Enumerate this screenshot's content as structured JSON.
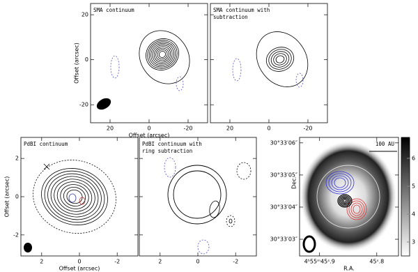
{
  "panels": [
    {
      "title_lines": [
        "SMA continuum"
      ],
      "xlabel": "Offset (arcsec)",
      "ylabel": "Offset (arcsec)",
      "xlim": [
        30,
        -30
      ],
      "ylim": [
        -28,
        25
      ],
      "xticks": [
        20,
        0,
        -20
      ],
      "yticks": [
        20,
        0,
        -20
      ],
      "ytick_labels": true
    },
    {
      "title_lines": [
        "SMA continuum with",
        "subtraction"
      ],
      "xlim": [
        30,
        -30
      ],
      "ylim": [
        -28,
        25
      ],
      "xticks": [
        20,
        0,
        -20
      ],
      "yticks": [
        20,
        0,
        -20
      ],
      "ytick_labels": false
    },
    {
      "title_lines": [
        "PdBI continuum"
      ],
      "xlabel": "Offset (arcsec)",
      "ylabel": "Offset (arcsec)",
      "xlim": [
        3.1,
        -3.1
      ],
      "ylim": [
        -3.1,
        3.1
      ],
      "xticks": [
        2,
        0,
        -2
      ],
      "yticks": [
        2,
        0,
        -2
      ],
      "ytick_labels": true
    },
    {
      "title_lines": [
        "PdBI continuum with",
        "ring subtraction"
      ],
      "xlim": [
        3.1,
        -3.1
      ],
      "ylim": [
        -3.1,
        3.1
      ],
      "xticks": [
        2,
        0,
        -2
      ],
      "yticks": [
        2,
        0,
        -2
      ],
      "ytick_labels": false
    },
    {
      "title_lines": [
        "100 AU"
      ],
      "xlabel": "R.A.",
      "ylabel": "Dec.",
      "xlim": [
        45.935,
        45.762
      ],
      "ylim": [
        2.48,
        6.17
      ],
      "xticks": [
        {
          "value": 45.9,
          "label": "4ʰ55ᵐ45ˢ.9"
        },
        {
          "value": 45.8,
          "label": "45ˢ.8"
        }
      ],
      "yticks": [
        {
          "value": 6,
          "label": "30°33′06″"
        },
        {
          "value": 5,
          "label": "30°33′05″"
        },
        {
          "value": 4,
          "label": "30°33′04″"
        },
        {
          "value": 3,
          "label": "30°33′03″"
        }
      ],
      "ytick_labels": true,
      "colorbar": {
        "clim": [
          2.5,
          6.75
        ],
        "ticks": [
          3,
          4,
          5,
          6
        ]
      }
    }
  ]
}
